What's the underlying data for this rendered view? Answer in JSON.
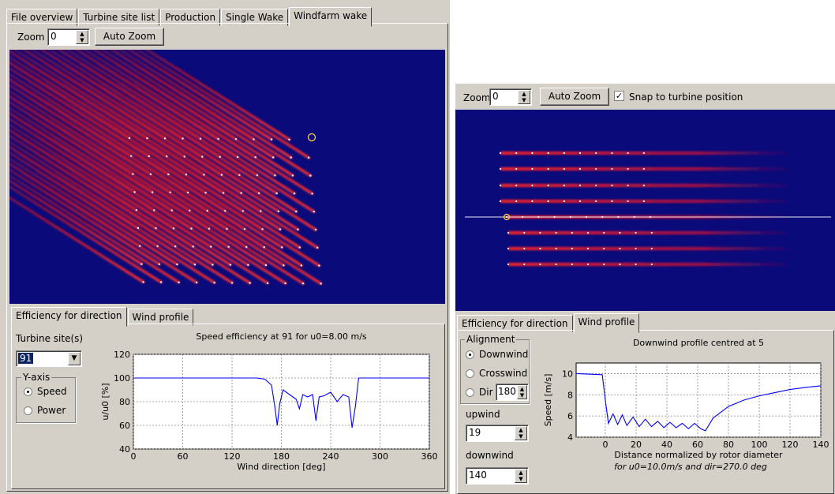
{
  "left": {
    "tabs": [
      "File overview",
      "Turbine site list",
      "Production",
      "Single Wake",
      "Windfarm wake"
    ],
    "active_tab": 4,
    "zoom_label": "Zoom",
    "zoom_value": "0",
    "auto_zoom_label": "Auto Zoom",
    "sub_tabs": [
      "Efficiency for direction",
      "Wind profile"
    ],
    "turbine_site_label": "Turbine site(s)",
    "turbine_site_value": "91",
    "y_axis_label": "Y-axis",
    "y_axis_options": [
      "Speed",
      "Power"
    ],
    "y_axis_selected": "Speed"
  },
  "right": {
    "zoom_label": "Zoom",
    "zoom_value": "0",
    "auto_zoom_label": "Auto Zoom",
    "snap_label": "Snap to turbine position",
    "snap_checked": true,
    "sub_tabs": [
      "Efficiency for direction",
      "Wind profile"
    ],
    "alignment_label": "Alignment",
    "alignment_options": [
      "Downwind",
      "Crosswind",
      "Dir"
    ],
    "alignment_selected": "Downwind",
    "dir_value": "180",
    "upwind_label": "upwind",
    "upwind_value": "19",
    "downwind_label": "downwind",
    "downwind_value": "140"
  },
  "colors": {
    "wake_bg": "#0a0a7a",
    "wake": "#c0102c",
    "line": "#0000ff",
    "panel": "#d4d0c8"
  },
  "chart_data": [
    {
      "type": "line",
      "title": "Speed efficiency at 91 for u0=8.00 m/s",
      "xlabel": "Wind direction [deg]",
      "ylabel": "u/u0 [%]",
      "xlim": [
        0,
        360
      ],
      "ylim": [
        40,
        120
      ],
      "xticks": [
        "0",
        "60",
        "120",
        "180",
        "240",
        "300",
        "360"
      ],
      "yticks": [
        "40",
        "60",
        "80",
        "100",
        "120"
      ],
      "grid": true,
      "x": [
        0,
        150,
        160,
        168,
        172,
        175,
        178,
        182,
        190,
        198,
        202,
        206,
        212,
        218,
        222,
        226,
        232,
        240,
        248,
        255,
        262,
        266,
        270,
        274,
        282,
        300,
        360
      ],
      "y": [
        100,
        100,
        99,
        94,
        76,
        60,
        78,
        90,
        86,
        82,
        74,
        86,
        84,
        86,
        64,
        84,
        85,
        88,
        80,
        86,
        84,
        58,
        76,
        100,
        100,
        100,
        100
      ]
    },
    {
      "type": "line",
      "title": "Downwind profile centred at 5",
      "xlabel": "Distance normalized by rotor diameter",
      "ylabel": "Speed [m/s]",
      "xlim": [
        -19,
        140
      ],
      "ylim": [
        4,
        11
      ],
      "xticks": [
        "0",
        "20",
        "40",
        "60",
        "80",
        "100",
        "120",
        "140"
      ],
      "yticks": [
        "4",
        "6",
        "8",
        "10"
      ],
      "grid": true,
      "footnote": "for u0=10.0m/s and dir=270.0 deg",
      "x": [
        -19,
        -2,
        0,
        2,
        5,
        8,
        11,
        14,
        18,
        22,
        26,
        30,
        34,
        38,
        42,
        46,
        50,
        54,
        58,
        62,
        65,
        70,
        80,
        90,
        100,
        110,
        120,
        130,
        140
      ],
      "y": [
        10,
        9.9,
        7.5,
        5.3,
        6.2,
        5.2,
        6.1,
        5.1,
        5.9,
        5.0,
        5.7,
        5.0,
        5.5,
        4.9,
        5.4,
        4.9,
        5.3,
        4.8,
        5.3,
        4.8,
        4.6,
        5.8,
        6.9,
        7.5,
        7.9,
        8.2,
        8.5,
        8.7,
        8.85
      ]
    }
  ]
}
